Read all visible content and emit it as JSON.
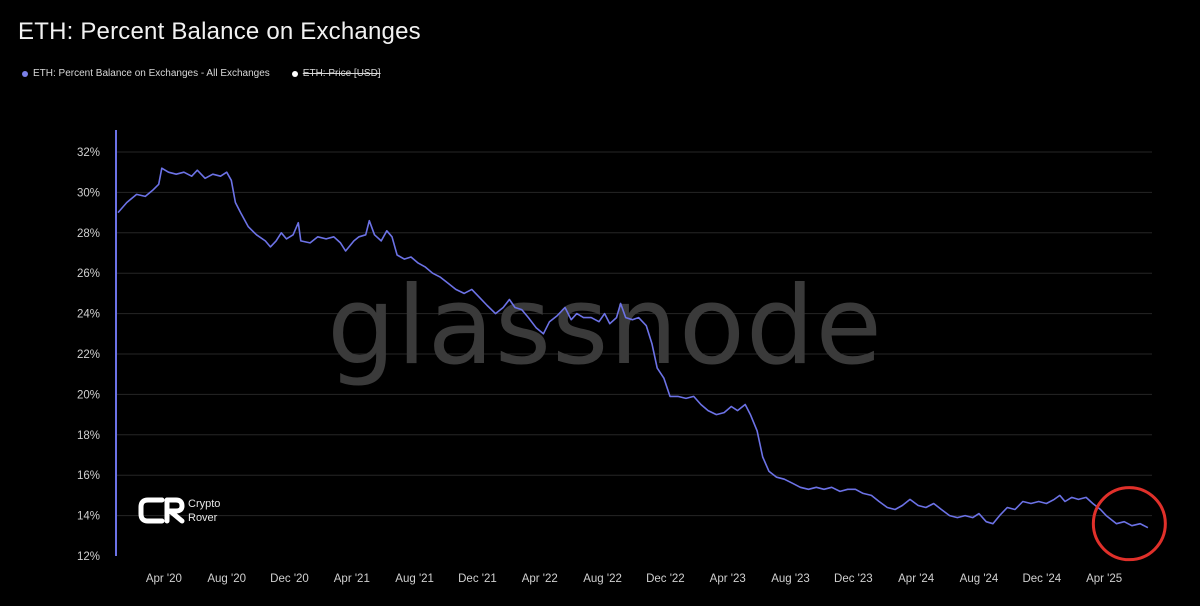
{
  "title": "ETH: Percent Balance on Exchanges",
  "legend": [
    {
      "label": "ETH: Percent Balance on Exchanges - All Exchanges",
      "color": "#7b80e8",
      "enabled": true
    },
    {
      "label": "ETH: Price [USD]",
      "color": "#ffffff",
      "enabled": false
    }
  ],
  "watermark": "glassnode",
  "brand": {
    "line1": "Crypto",
    "line2": "Rover"
  },
  "colors": {
    "line": "#6c72e6",
    "grid": "#262626",
    "highlight": "#e0302a",
    "background": "#000000"
  },
  "chart_data": {
    "type": "line",
    "title": "ETH: Percent Balance on Exchanges",
    "xlabel": "",
    "ylabel": "",
    "ylim": [
      12,
      32
    ],
    "xlim": [
      "2020-01-01",
      "2025-07-03"
    ],
    "y_ticks": [
      "12%",
      "14%",
      "16%",
      "18%",
      "20%",
      "22%",
      "24%",
      "26%",
      "28%",
      "30%",
      "32%"
    ],
    "x_ticks": [
      {
        "date": "2020-04-01",
        "label": "Apr '20"
      },
      {
        "date": "2020-08-01",
        "label": "Aug '20"
      },
      {
        "date": "2020-12-01",
        "label": "Dec '20"
      },
      {
        "date": "2021-04-01",
        "label": "Apr '21"
      },
      {
        "date": "2021-08-01",
        "label": "Aug '21"
      },
      {
        "date": "2021-12-01",
        "label": "Dec '21"
      },
      {
        "date": "2022-04-01",
        "label": "Apr '22"
      },
      {
        "date": "2022-08-01",
        "label": "Aug '22"
      },
      {
        "date": "2022-12-01",
        "label": "Dec '22"
      },
      {
        "date": "2023-04-01",
        "label": "Apr '23"
      },
      {
        "date": "2023-08-01",
        "label": "Aug '23"
      },
      {
        "date": "2023-12-01",
        "label": "Dec '23"
      },
      {
        "date": "2024-04-01",
        "label": "Apr '24"
      },
      {
        "date": "2024-08-01",
        "label": "Aug '24"
      },
      {
        "date": "2024-12-01",
        "label": "Dec '24"
      },
      {
        "date": "2025-04-01",
        "label": "Apr '25"
      }
    ],
    "grid": true,
    "legend_position": "top-left",
    "series": [
      {
        "name": "ETH: Percent Balance on Exchanges - All Exchanges",
        "points": [
          [
            "2020-01-03",
            29.0
          ],
          [
            "2020-01-20",
            29.5
          ],
          [
            "2020-02-08",
            29.9
          ],
          [
            "2020-02-25",
            29.8
          ],
          [
            "2020-03-10",
            30.1
          ],
          [
            "2020-03-22",
            30.4
          ],
          [
            "2020-03-28",
            31.2
          ],
          [
            "2020-04-10",
            31.0
          ],
          [
            "2020-04-25",
            30.9
          ],
          [
            "2020-05-10",
            31.0
          ],
          [
            "2020-05-25",
            30.8
          ],
          [
            "2020-06-05",
            31.1
          ],
          [
            "2020-06-20",
            30.7
          ],
          [
            "2020-07-05",
            30.9
          ],
          [
            "2020-07-20",
            30.8
          ],
          [
            "2020-08-01",
            31.0
          ],
          [
            "2020-08-10",
            30.6
          ],
          [
            "2020-08-18",
            29.5
          ],
          [
            "2020-08-28",
            29.0
          ],
          [
            "2020-09-12",
            28.3
          ],
          [
            "2020-09-28",
            27.9
          ],
          [
            "2020-10-15",
            27.6
          ],
          [
            "2020-10-25",
            27.3
          ],
          [
            "2020-11-05",
            27.6
          ],
          [
            "2020-11-15",
            28.0
          ],
          [
            "2020-11-25",
            27.7
          ],
          [
            "2020-12-08",
            27.9
          ],
          [
            "2020-12-18",
            28.5
          ],
          [
            "2020-12-23",
            27.6
          ],
          [
            "2021-01-10",
            27.5
          ],
          [
            "2021-01-25",
            27.8
          ],
          [
            "2021-02-10",
            27.7
          ],
          [
            "2021-02-25",
            27.8
          ],
          [
            "2021-03-10",
            27.5
          ],
          [
            "2021-03-20",
            27.1
          ],
          [
            "2021-04-05",
            27.6
          ],
          [
            "2021-04-15",
            27.8
          ],
          [
            "2021-04-28",
            27.9
          ],
          [
            "2021-05-05",
            28.6
          ],
          [
            "2021-05-15",
            27.9
          ],
          [
            "2021-05-28",
            27.6
          ],
          [
            "2021-06-08",
            28.1
          ],
          [
            "2021-06-18",
            27.8
          ],
          [
            "2021-06-28",
            26.9
          ],
          [
            "2021-07-12",
            26.7
          ],
          [
            "2021-07-25",
            26.8
          ],
          [
            "2021-08-08",
            26.5
          ],
          [
            "2021-08-22",
            26.3
          ],
          [
            "2021-09-05",
            26.0
          ],
          [
            "2021-09-20",
            25.8
          ],
          [
            "2021-10-05",
            25.5
          ],
          [
            "2021-10-20",
            25.2
          ],
          [
            "2021-11-05",
            25.0
          ],
          [
            "2021-11-20",
            25.2
          ],
          [
            "2021-12-05",
            24.8
          ],
          [
            "2021-12-20",
            24.4
          ],
          [
            "2022-01-05",
            24.0
          ],
          [
            "2022-01-20",
            24.3
          ],
          [
            "2022-02-01",
            24.7
          ],
          [
            "2022-02-12",
            24.3
          ],
          [
            "2022-02-25",
            24.2
          ],
          [
            "2022-03-10",
            23.8
          ],
          [
            "2022-03-25",
            23.3
          ],
          [
            "2022-04-08",
            23.0
          ],
          [
            "2022-04-20",
            23.6
          ],
          [
            "2022-05-05",
            23.9
          ],
          [
            "2022-05-20",
            24.3
          ],
          [
            "2022-06-01",
            23.7
          ],
          [
            "2022-06-12",
            24.0
          ],
          [
            "2022-06-25",
            23.8
          ],
          [
            "2022-07-10",
            23.8
          ],
          [
            "2022-07-25",
            23.6
          ],
          [
            "2022-08-05",
            24.0
          ],
          [
            "2022-08-15",
            23.5
          ],
          [
            "2022-08-28",
            23.8
          ],
          [
            "2022-09-05",
            24.5
          ],
          [
            "2022-09-15",
            23.8
          ],
          [
            "2022-09-28",
            23.7
          ],
          [
            "2022-10-10",
            23.8
          ],
          [
            "2022-10-25",
            23.4
          ],
          [
            "2022-11-05",
            22.5
          ],
          [
            "2022-11-15",
            21.3
          ],
          [
            "2022-11-28",
            20.8
          ],
          [
            "2022-12-10",
            19.9
          ],
          [
            "2022-12-25",
            19.9
          ],
          [
            "2023-01-10",
            19.8
          ],
          [
            "2023-01-25",
            19.9
          ],
          [
            "2023-02-08",
            19.5
          ],
          [
            "2023-02-22",
            19.2
          ],
          [
            "2023-03-10",
            19.0
          ],
          [
            "2023-03-25",
            19.1
          ],
          [
            "2023-04-08",
            19.4
          ],
          [
            "2023-04-20",
            19.2
          ],
          [
            "2023-05-05",
            19.5
          ],
          [
            "2023-05-15",
            19.0
          ],
          [
            "2023-05-28",
            18.2
          ],
          [
            "2023-06-08",
            16.9
          ],
          [
            "2023-06-20",
            16.2
          ],
          [
            "2023-07-05",
            15.9
          ],
          [
            "2023-07-20",
            15.8
          ],
          [
            "2023-08-05",
            15.6
          ],
          [
            "2023-08-20",
            15.4
          ],
          [
            "2023-09-05",
            15.3
          ],
          [
            "2023-09-20",
            15.4
          ],
          [
            "2023-10-05",
            15.3
          ],
          [
            "2023-10-20",
            15.4
          ],
          [
            "2023-11-05",
            15.2
          ],
          [
            "2023-11-20",
            15.3
          ],
          [
            "2023-12-05",
            15.3
          ],
          [
            "2023-12-20",
            15.1
          ],
          [
            "2024-01-05",
            15.0
          ],
          [
            "2024-01-20",
            14.7
          ],
          [
            "2024-02-05",
            14.4
          ],
          [
            "2024-02-20",
            14.3
          ],
          [
            "2024-03-05",
            14.5
          ],
          [
            "2024-03-20",
            14.8
          ],
          [
            "2024-04-05",
            14.5
          ],
          [
            "2024-04-20",
            14.4
          ],
          [
            "2024-05-05",
            14.6
          ],
          [
            "2024-05-20",
            14.3
          ],
          [
            "2024-06-05",
            14.0
          ],
          [
            "2024-06-20",
            13.9
          ],
          [
            "2024-07-05",
            14.0
          ],
          [
            "2024-07-20",
            13.9
          ],
          [
            "2024-08-01",
            14.1
          ],
          [
            "2024-08-15",
            13.7
          ],
          [
            "2024-08-28",
            13.6
          ],
          [
            "2024-09-10",
            14.0
          ],
          [
            "2024-09-25",
            14.4
          ],
          [
            "2024-10-10",
            14.3
          ],
          [
            "2024-10-25",
            14.7
          ],
          [
            "2024-11-10",
            14.6
          ],
          [
            "2024-11-25",
            14.7
          ],
          [
            "2024-12-10",
            14.6
          ],
          [
            "2024-12-25",
            14.8
          ],
          [
            "2025-01-05",
            15.0
          ],
          [
            "2025-01-15",
            14.7
          ],
          [
            "2025-01-28",
            14.9
          ],
          [
            "2025-02-10",
            14.8
          ],
          [
            "2025-02-25",
            14.9
          ],
          [
            "2025-03-10",
            14.6
          ],
          [
            "2025-03-25",
            14.3
          ],
          [
            "2025-04-05",
            14.0
          ],
          [
            "2025-04-15",
            13.8
          ],
          [
            "2025-04-25",
            13.6
          ],
          [
            "2025-05-10",
            13.7
          ],
          [
            "2025-05-25",
            13.5
          ],
          [
            "2025-06-10",
            13.6
          ],
          [
            "2025-06-25",
            13.4
          ]
        ]
      }
    ],
    "annotations": [
      {
        "type": "circle",
        "color": "#e0302a",
        "around": {
          "x": "2025-05-20",
          "y": 13.6
        }
      }
    ]
  }
}
